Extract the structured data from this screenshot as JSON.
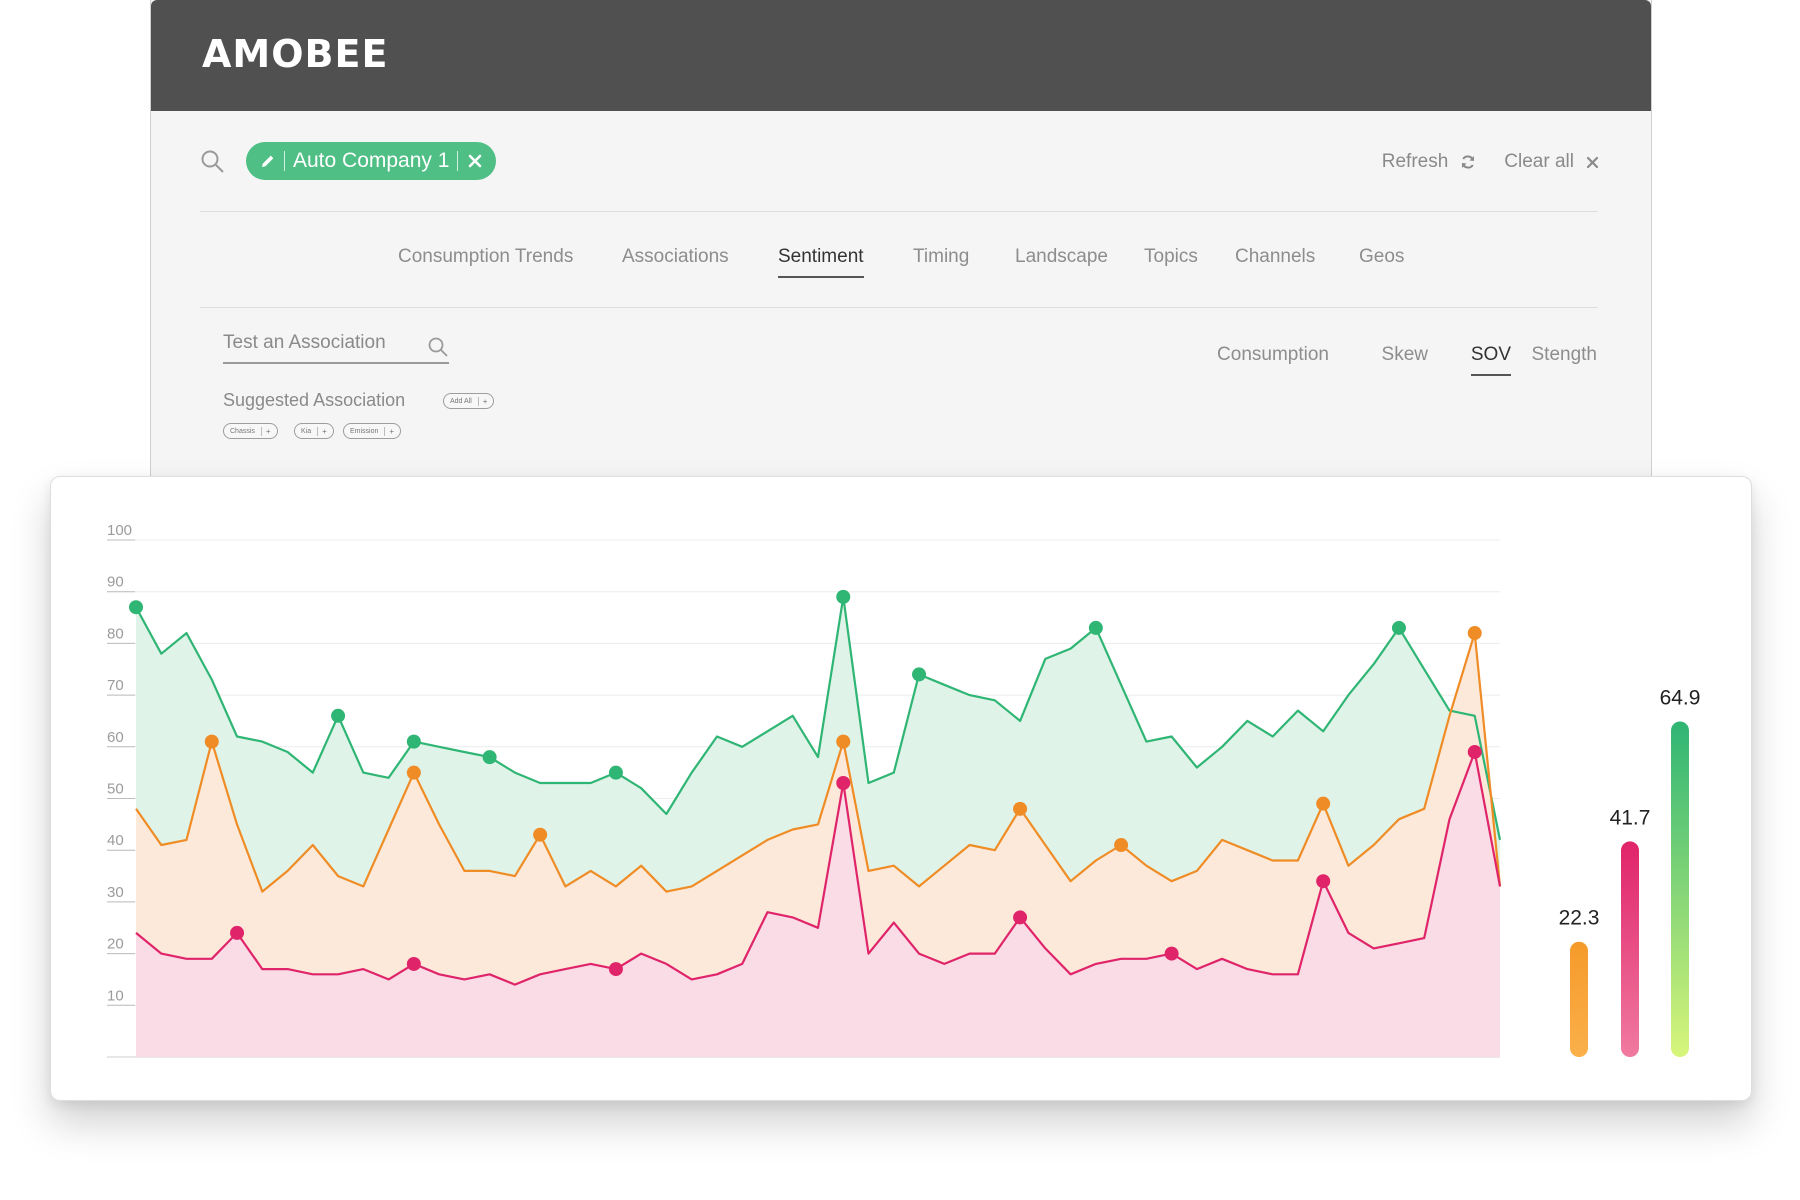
{
  "app": {
    "logo": "AMOBEE"
  },
  "search": {
    "query": "Auto Company 1",
    "actions": [
      {
        "label": "Refresh",
        "icon": "refresh-icon"
      },
      {
        "label": "Clear all",
        "icon": "close-icon"
      }
    ]
  },
  "tabs": [
    {
      "label": "Consumption Trends",
      "active": false
    },
    {
      "label": "Associations",
      "active": false
    },
    {
      "label": "Sentiment",
      "active": true
    },
    {
      "label": "Timing",
      "active": false
    },
    {
      "label": "Landscape",
      "active": false
    },
    {
      "label": "Topics",
      "active": false
    },
    {
      "label": "Channels",
      "active": false
    },
    {
      "label": "Geos",
      "active": false
    }
  ],
  "association": {
    "placeholder": "Test an Association",
    "suggested_label": "Suggested Association",
    "add_all": "Add All",
    "chips": [
      "Chassis",
      "Kia",
      "Emission"
    ]
  },
  "metric_tabs": [
    {
      "label": "Consumption",
      "active": false
    },
    {
      "label": "Skew",
      "active": false
    },
    {
      "label": "SOV",
      "active": true
    },
    {
      "label": "Stength",
      "active": false
    }
  ],
  "chart_data": {
    "type": "area",
    "ylim": [
      0,
      100
    ],
    "yticks": [
      10,
      20,
      30,
      40,
      50,
      60,
      70,
      80,
      90,
      100
    ],
    "grid": true,
    "colors": {
      "green": "#2fb574",
      "orange": "#ef8c25",
      "pink": "#e0246a"
    },
    "series": [
      {
        "color_key": "green",
        "values": [
          87,
          78,
          82,
          73,
          62,
          61,
          59,
          55,
          66,
          55,
          54,
          61,
          60,
          59,
          58,
          55,
          53,
          53,
          53,
          55,
          52,
          47,
          55,
          62,
          60,
          63,
          66,
          58,
          89,
          53,
          55,
          74,
          72,
          70,
          69,
          65,
          77,
          79,
          83,
          72,
          61,
          62,
          56,
          60,
          65,
          62,
          67,
          63,
          70,
          76,
          83,
          75,
          67,
          66,
          42
        ],
        "markers": [
          0,
          8,
          11,
          14,
          19,
          28,
          31,
          38,
          50
        ]
      },
      {
        "color_key": "orange",
        "values": [
          48,
          41,
          42,
          61,
          45,
          32,
          36,
          41,
          35,
          33,
          44,
          55,
          45,
          36,
          36,
          35,
          43,
          33,
          36,
          33,
          37,
          32,
          33,
          36,
          39,
          42,
          44,
          45,
          61,
          36,
          37,
          33,
          37,
          41,
          40,
          48,
          41,
          34,
          38,
          41,
          37,
          34,
          36,
          42,
          40,
          38,
          38,
          49,
          37,
          41,
          46,
          48,
          66,
          82,
          33
        ],
        "markers": [
          3,
          11,
          16,
          28,
          35,
          39,
          47,
          53
        ]
      },
      {
        "color_key": "pink",
        "values": [
          24,
          20,
          19,
          19,
          24,
          17,
          17,
          16,
          16,
          17,
          15,
          18,
          16,
          15,
          16,
          14,
          16,
          17,
          18,
          17,
          20,
          18,
          15,
          16,
          18,
          28,
          27,
          25,
          53,
          20,
          26,
          20,
          18,
          20,
          20,
          27,
          21,
          16,
          18,
          19,
          19,
          20,
          17,
          19,
          17,
          16,
          16,
          34,
          24,
          21,
          22,
          23,
          46,
          59,
          33
        ],
        "markers": [
          4,
          11,
          19,
          28,
          35,
          41,
          47,
          53
        ]
      }
    ],
    "bars": [
      {
        "value": 22.3,
        "label": "22.3",
        "color_key": "orange"
      },
      {
        "value": 41.7,
        "label": "41.7",
        "color_key": "pink"
      },
      {
        "value": 64.9,
        "label": "64.9",
        "color_key": "green"
      }
    ]
  }
}
